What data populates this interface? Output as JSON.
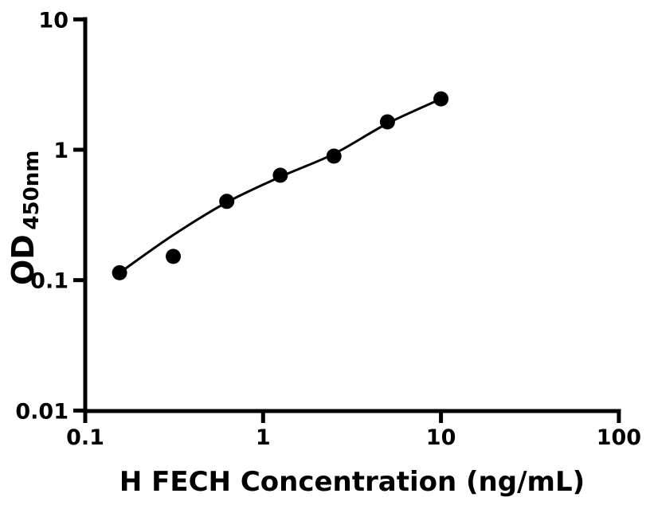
{
  "figure": {
    "background": "#ffffff",
    "axis_color": "#000000"
  },
  "chart_data": {
    "type": "scatter",
    "title": "",
    "xlabel": "H FECH Concentration (ng/mL)",
    "ylabel": {
      "main": "OD",
      "sub": "450nm"
    },
    "x_scale": "log10",
    "y_scale": "log10",
    "xlim": [
      0.1,
      100
    ],
    "ylim": [
      0.01,
      10
    ],
    "grid": false,
    "legend": false,
    "x_ticks": [
      {
        "value": 0.1,
        "label": "0.1"
      },
      {
        "value": 1,
        "label": "1"
      },
      {
        "value": 10,
        "label": "10"
      },
      {
        "value": 100,
        "label": "100"
      }
    ],
    "y_ticks": [
      {
        "value": 10,
        "label": "10"
      },
      {
        "value": 1,
        "label": "1"
      },
      {
        "value": 0.1,
        "label": "0.1"
      },
      {
        "value": 0.01,
        "label": "0.01"
      }
    ],
    "series": [
      {
        "name": "standard-curve",
        "marker": "filled-circle",
        "marker_color": "#000000",
        "line_color": "#000000",
        "points": [
          {
            "x": 0.156,
            "y": 0.114
          },
          {
            "x": 0.3125,
            "y": 0.152
          },
          {
            "x": 0.625,
            "y": 0.402
          },
          {
            "x": 1.25,
            "y": 0.638
          },
          {
            "x": 2.5,
            "y": 0.894
          },
          {
            "x": 5,
            "y": 1.635
          },
          {
            "x": 10,
            "y": 2.456
          }
        ],
        "fit_line": [
          {
            "x": 0.156,
            "y": 0.114
          },
          {
            "x": 0.3125,
            "y": 0.222
          },
          {
            "x": 0.625,
            "y": 0.395
          },
          {
            "x": 1.25,
            "y": 0.62
          },
          {
            "x": 2.5,
            "y": 0.93
          },
          {
            "x": 5,
            "y": 1.59
          },
          {
            "x": 10,
            "y": 2.456
          }
        ]
      }
    ]
  }
}
